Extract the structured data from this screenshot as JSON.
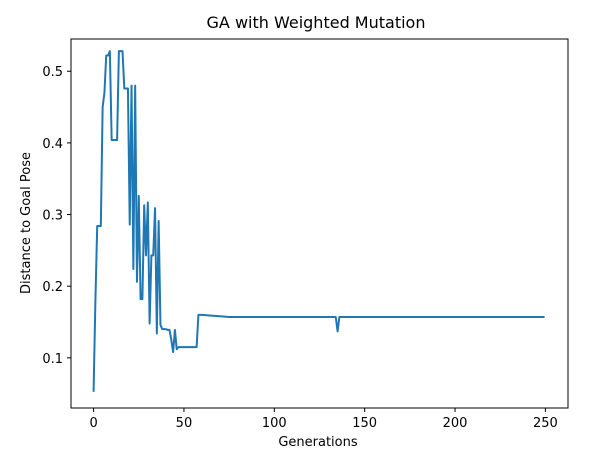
{
  "chart_data": {
    "type": "line",
    "title": "GA with Weighted Mutation",
    "xlabel": "Generations",
    "ylabel": "Distance to Goal Pose",
    "xlim": [
      -12.5,
      262.5
    ],
    "ylim": [
      0.03,
      0.545
    ],
    "xticks": [
      0,
      50,
      100,
      150,
      200,
      250
    ],
    "yticks": [
      0.1,
      0.2,
      0.3,
      0.4,
      0.5
    ],
    "xtick_labels": [
      "0",
      "50",
      "100",
      "150",
      "200",
      "250"
    ],
    "ytick_labels": [
      "0.1",
      "0.2",
      "0.3",
      "0.4",
      "0.5"
    ],
    "grid": false,
    "legend": "none",
    "line_color": "#1f77b4",
    "series": [
      {
        "x": [
          0,
          1,
          2,
          3,
          4,
          5,
          6,
          7,
          8,
          9,
          10,
          11,
          12,
          13,
          14,
          15,
          16,
          17,
          18,
          19,
          20,
          21,
          22,
          23,
          24,
          25,
          26,
          27,
          28,
          29,
          30,
          31,
          32,
          33,
          34,
          35,
          36,
          37,
          38,
          39,
          40,
          41,
          42,
          43,
          44,
          45,
          46,
          47,
          48,
          49,
          50,
          55,
          57,
          58,
          60,
          65,
          70,
          75,
          80,
          85,
          90,
          100,
          110,
          120,
          130,
          134,
          135,
          136,
          140,
          150,
          160,
          170,
          180,
          190,
          200,
          210,
          220,
          230,
          240,
          249
        ],
        "values": [
          0.054,
          0.18,
          0.284,
          0.284,
          0.284,
          0.45,
          0.47,
          0.522,
          0.522,
          0.528,
          0.404,
          0.404,
          0.404,
          0.404,
          0.528,
          0.528,
          0.528,
          0.476,
          0.476,
          0.476,
          0.286,
          0.48,
          0.224,
          0.48,
          0.206,
          0.326,
          0.182,
          0.182,
          0.313,
          0.243,
          0.317,
          0.148,
          0.243,
          0.243,
          0.309,
          0.134,
          0.291,
          0.146,
          0.14,
          0.14,
          0.14,
          0.139,
          0.139,
          0.125,
          0.108,
          0.139,
          0.112,
          0.115,
          0.115,
          0.115,
          0.115,
          0.115,
          0.115,
          0.16,
          0.16,
          0.159,
          0.158,
          0.157,
          0.157,
          0.157,
          0.157,
          0.157,
          0.157,
          0.157,
          0.157,
          0.157,
          0.137,
          0.157,
          0.157,
          0.157,
          0.157,
          0.157,
          0.157,
          0.157,
          0.157,
          0.157,
          0.157,
          0.157,
          0.157,
          0.157
        ]
      }
    ]
  }
}
